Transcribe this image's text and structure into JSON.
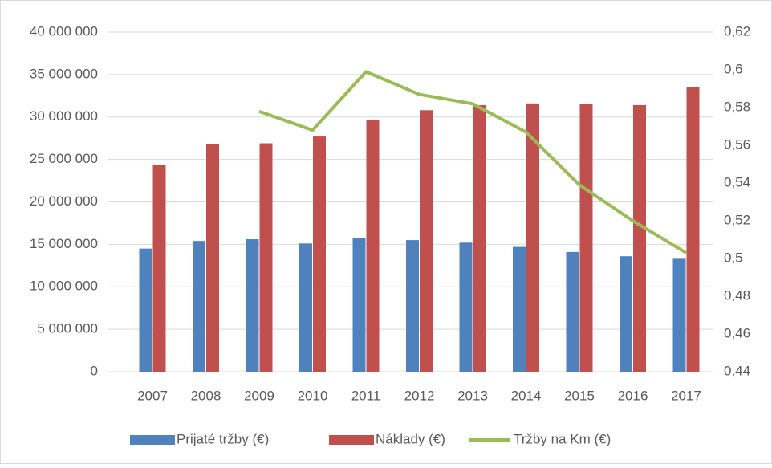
{
  "chart_data": {
    "type": "bar",
    "categories": [
      "2007",
      "2008",
      "2009",
      "2010",
      "2011",
      "2012",
      "2013",
      "2014",
      "2015",
      "2016",
      "2017"
    ],
    "series": [
      {
        "name": "Prijaté tržby (€)",
        "color": "#4f81bd",
        "type": "bar",
        "values": [
          14500000,
          15400000,
          15600000,
          15100000,
          15700000,
          15500000,
          15200000,
          14700000,
          14100000,
          13600000,
          13300000
        ]
      },
      {
        "name": "Náklady (€)",
        "color": "#c0504d",
        "type": "bar",
        "values": [
          24400000,
          26800000,
          26900000,
          27700000,
          29600000,
          30800000,
          31400000,
          31600000,
          31500000,
          31400000,
          33500000
        ]
      },
      {
        "name": "Tržby na Km (€)",
        "color": "#9bbb59",
        "type": "line",
        "axis": "y2",
        "values": [
          null,
          null,
          0.578,
          0.568,
          0.599,
          0.587,
          0.582,
          0.567,
          0.539,
          0.52,
          0.503
        ]
      }
    ],
    "ylim": [
      0,
      40000000
    ],
    "yticks": [
      0,
      {
        "value": 5000000,
        "label": "5 000 000"
      },
      {
        "value": 10000000,
        "label": "10 000 000"
      },
      {
        "value": 15000000,
        "label": "15 000 000"
      },
      {
        "value": 20000000,
        "label": "20 000 000"
      },
      {
        "value": 25000000,
        "label": "25 000 000"
      },
      {
        "value": 30000000,
        "label": "30 000 000"
      },
      {
        "value": 35000000,
        "label": "35 000 000"
      },
      {
        "value": 40000000,
        "label": "40 000 000"
      }
    ],
    "y2lim": [
      0.44,
      0.62
    ],
    "y2ticks": [
      {
        "value": 0.44,
        "label": "0,44"
      },
      {
        "value": 0.46,
        "label": "0,46"
      },
      {
        "value": 0.48,
        "label": "0,48"
      },
      {
        "value": 0.5,
        "label": "0,5"
      },
      {
        "value": 0.52,
        "label": "0,52"
      },
      {
        "value": 0.54,
        "label": "0,54"
      },
      {
        "value": 0.56,
        "label": "0,56"
      },
      {
        "value": 0.58,
        "label": "0,58"
      },
      {
        "value": 0.6,
        "label": "0,6"
      },
      {
        "value": 0.62,
        "label": "0,62"
      }
    ],
    "grid": true,
    "legend": "bottom"
  }
}
